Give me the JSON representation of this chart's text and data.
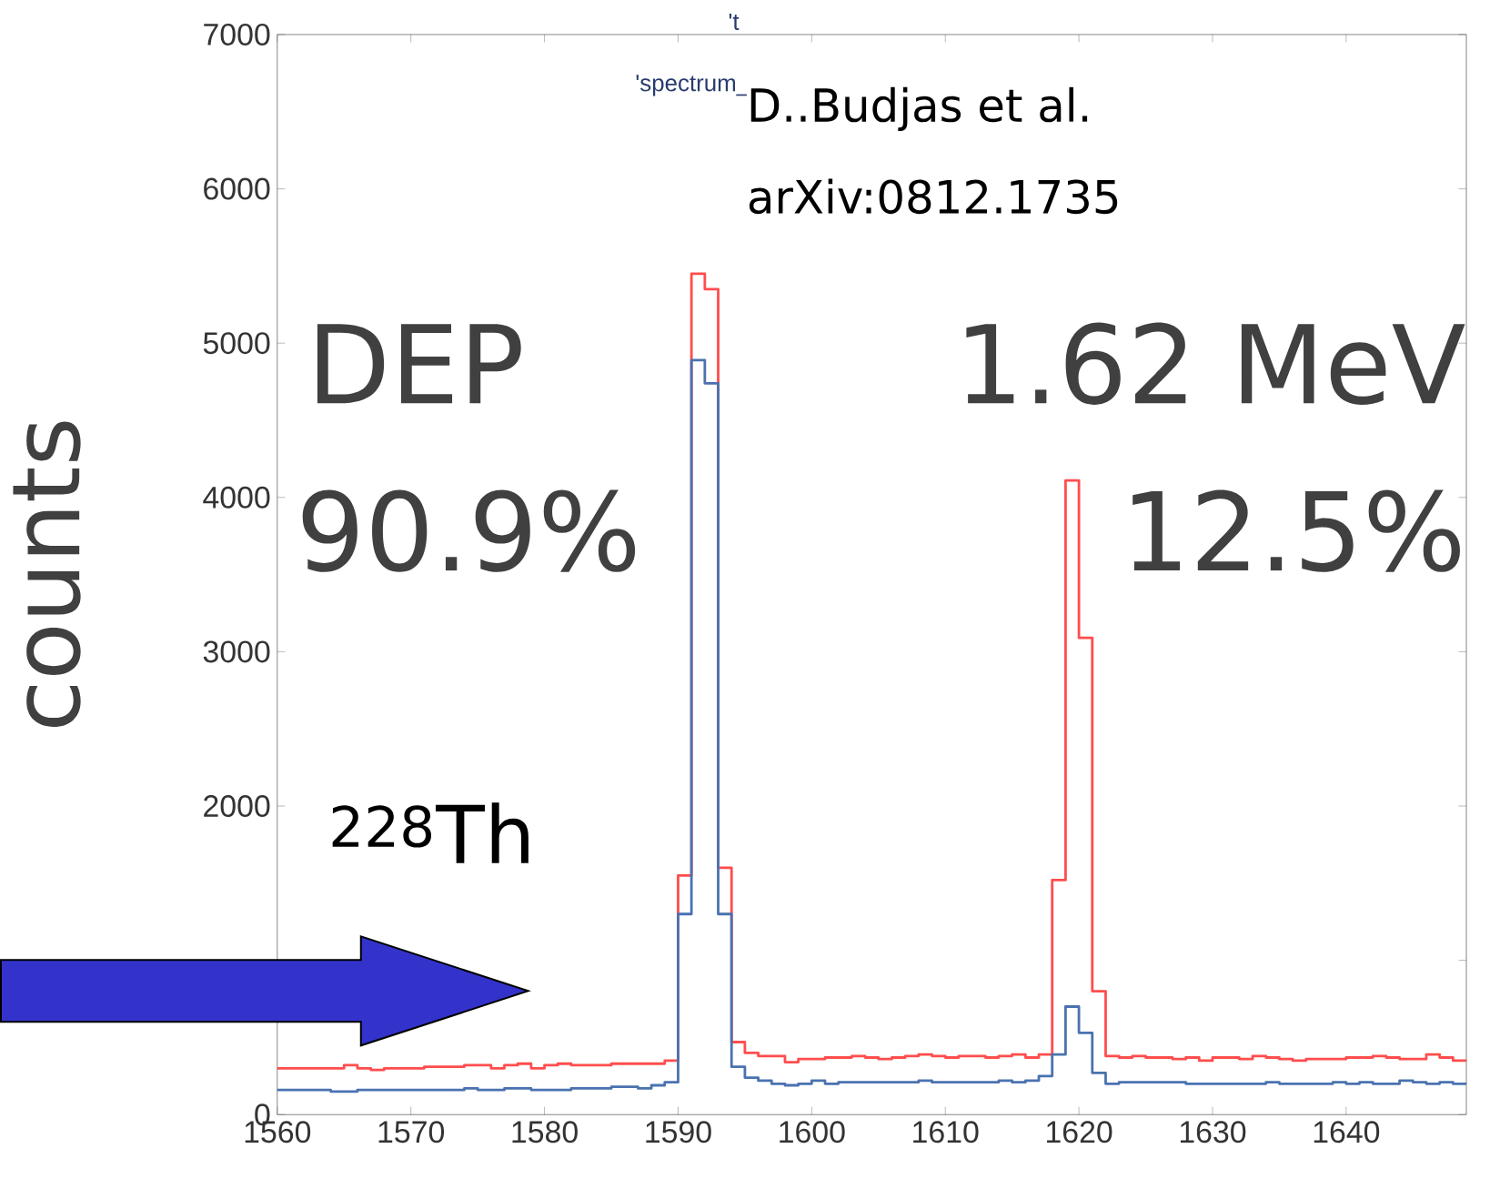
{
  "chart_data": {
    "type": "histogram",
    "ylabel": "counts",
    "bins": [
      1560,
      1561,
      1562,
      1563,
      1564,
      1565,
      1566,
      1567,
      1568,
      1569,
      1570,
      1571,
      1572,
      1573,
      1574,
      1575,
      1576,
      1577,
      1578,
      1579,
      1580,
      1581,
      1582,
      1583,
      1584,
      1585,
      1586,
      1587,
      1588,
      1589,
      1590,
      1591,
      1592,
      1593,
      1594,
      1595,
      1596,
      1597,
      1598,
      1599,
      1600,
      1601,
      1602,
      1603,
      1604,
      1605,
      1606,
      1607,
      1608,
      1609,
      1610,
      1611,
      1612,
      1613,
      1614,
      1615,
      1616,
      1617,
      1618,
      1619,
      1620,
      1621,
      1622,
      1623,
      1624,
      1625,
      1626,
      1627,
      1628,
      1629,
      1630,
      1631,
      1632,
      1633,
      1634,
      1635,
      1636,
      1637,
      1638,
      1639,
      1640,
      1641,
      1642,
      1643,
      1644,
      1645,
      1646,
      1647,
      1648,
      1649
    ],
    "series": [
      {
        "color": "#ff4d4d",
        "values": [
          300,
          300,
          300,
          300,
          300,
          320,
          300,
          290,
          300,
          300,
          300,
          310,
          310,
          310,
          320,
          320,
          300,
          320,
          330,
          300,
          320,
          330,
          320,
          320,
          320,
          330,
          330,
          330,
          330,
          350,
          1550,
          5450,
          5350,
          1600,
          470,
          400,
          380,
          380,
          340,
          360,
          360,
          370,
          370,
          380,
          370,
          360,
          370,
          380,
          390,
          380,
          370,
          380,
          380,
          370,
          380,
          390,
          370,
          390,
          1520,
          4110,
          3090,
          800,
          380,
          370,
          380,
          370,
          370,
          360,
          370,
          350,
          370,
          370,
          360,
          380,
          370,
          360,
          350,
          360,
          360,
          360,
          370,
          370,
          380,
          370,
          360,
          360,
          390,
          370,
          350
        ]
      },
      {
        "color": "#4a72b0",
        "values": [
          160,
          160,
          160,
          160,
          150,
          150,
          160,
          160,
          160,
          160,
          160,
          160,
          160,
          160,
          170,
          160,
          160,
          170,
          170,
          160,
          160,
          160,
          170,
          170,
          170,
          180,
          180,
          170,
          190,
          210,
          1300,
          4890,
          4740,
          1300,
          310,
          240,
          220,
          200,
          190,
          200,
          220,
          200,
          210,
          210,
          210,
          210,
          210,
          210,
          220,
          210,
          210,
          210,
          210,
          210,
          220,
          210,
          220,
          250,
          390,
          700,
          530,
          270,
          200,
          210,
          210,
          210,
          210,
          210,
          200,
          200,
          200,
          200,
          200,
          200,
          210,
          200,
          200,
          200,
          200,
          210,
          200,
          210,
          200,
          200,
          220,
          210,
          200,
          210,
          200
        ]
      }
    ],
    "xlim": [
      1560,
      1649
    ],
    "ylim": [
      0,
      7000
    ],
    "xticks": [
      1560,
      1570,
      1580,
      1590,
      1600,
      1610,
      1620,
      1630,
      1640
    ],
    "yticks": [
      0,
      {
        "value": 1000,
        "label": null
      },
      2000,
      3000,
      4000,
      5000,
      6000,
      7000
    ],
    "annotations": [
      "'t",
      "'spectrum_",
      "D..Budjas et al.",
      "arXiv:0812.1735",
      "DEP",
      "1.62 MeV",
      "90.9%",
      "12.5%",
      "$^{228}$Th"
    ]
  }
}
